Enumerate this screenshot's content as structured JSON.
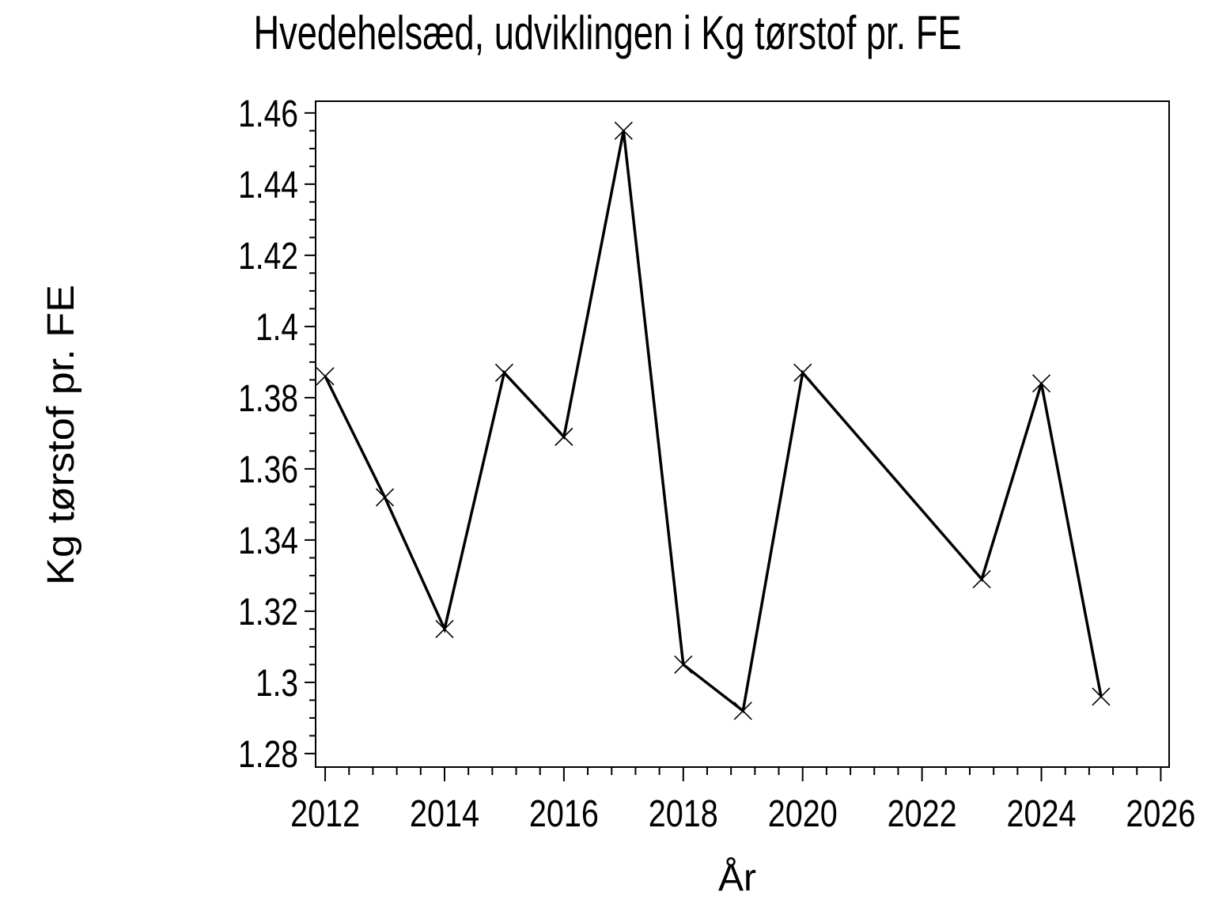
{
  "chart_data": {
    "type": "line",
    "title": "Hvedehelsæd, udviklingen i Kg tørstof pr. FE",
    "xlabel": "År",
    "ylabel": "Kg tørstof pr. FE",
    "x": [
      2012,
      2013,
      2014,
      2015,
      2016,
      2017,
      2018,
      2019,
      2020,
      2023,
      2024,
      2025
    ],
    "y": [
      1.386,
      1.352,
      1.315,
      1.387,
      1.369,
      1.455,
      1.305,
      1.292,
      1.387,
      1.329,
      1.384,
      1.296
    ],
    "series": [
      {
        "name": "Kg tørstof pr. FE",
        "x": [
          2012,
          2013,
          2014,
          2015,
          2016,
          2017,
          2018,
          2019,
          2020,
          2023,
          2024,
          2025
        ],
        "values": [
          1.386,
          1.352,
          1.315,
          1.387,
          1.369,
          1.455,
          1.305,
          1.292,
          1.387,
          1.329,
          1.384,
          1.296
        ]
      }
    ],
    "x_ticks_major": [
      2012,
      2014,
      2016,
      2018,
      2020,
      2022,
      2024,
      2026
    ],
    "x_tick_labels": [
      "2012",
      "2014",
      "2016",
      "2018",
      "2020",
      "2022",
      "2024",
      "2026"
    ],
    "x_minor_step": 0.4,
    "y_ticks_major": [
      1.28,
      1.3,
      1.32,
      1.34,
      1.36,
      1.38,
      1.4,
      1.42,
      1.44,
      1.46
    ],
    "y_tick_labels": [
      "1.28",
      "1.3",
      "1.32",
      "1.34",
      "1.36",
      "1.38",
      "1.4",
      "1.42",
      "1.44",
      "1.46"
    ],
    "y_minor_step": 0.005,
    "xlim": [
      2011.84,
      2026.14
    ],
    "ylim": [
      1.2762,
      1.4633
    ],
    "marker": "x",
    "line_color": "#000000",
    "axis_color": "#000000",
    "background_color": "#ffffff",
    "grid": false,
    "legend": false
  }
}
